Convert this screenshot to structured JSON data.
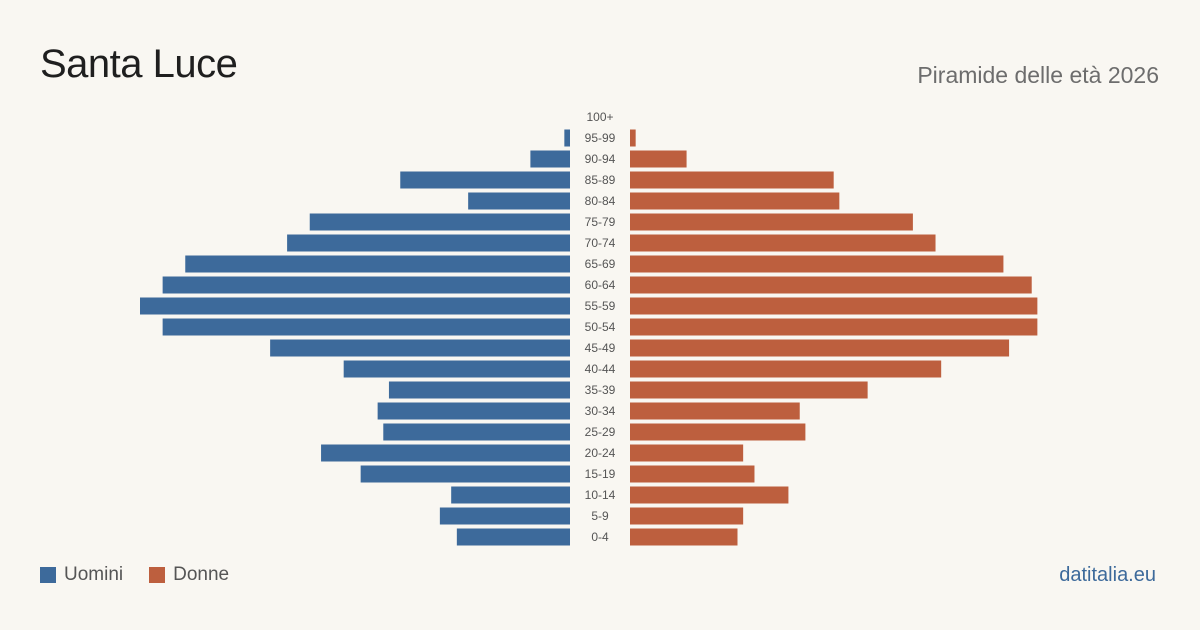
{
  "header": {
    "title": "Santa Luce",
    "subtitle": "Piramide delle età 2026"
  },
  "legend": {
    "men_label": "Uomini",
    "women_label": "Donne"
  },
  "source": "datitalia.eu",
  "colors": {
    "men": "#3d6a9b",
    "women": "#bd5f3e",
    "background": "#f9f7f2",
    "age_label": "#555555"
  },
  "chart_data": {
    "type": "bar",
    "orientation": "horizontal-pyramid",
    "categories": [
      "100+",
      "95-99",
      "90-94",
      "85-89",
      "80-84",
      "75-79",
      "70-74",
      "65-69",
      "60-64",
      "55-59",
      "50-54",
      "45-49",
      "40-44",
      "35-39",
      "30-34",
      "25-29",
      "20-24",
      "15-19",
      "10-14",
      "5-9",
      "0-4"
    ],
    "series": [
      {
        "name": "Uomini",
        "values": [
          0,
          1,
          7,
          30,
          18,
          46,
          50,
          68,
          72,
          76,
          72,
          53,
          40,
          32,
          34,
          33,
          44,
          37,
          21,
          23,
          20
        ]
      },
      {
        "name": "Donne",
        "values": [
          0,
          1,
          10,
          36,
          37,
          50,
          54,
          66,
          71,
          72,
          72,
          67,
          55,
          42,
          30,
          31,
          20,
          22,
          28,
          20,
          19
        ]
      }
    ],
    "xlim": [
      0,
      76
    ],
    "grid": false,
    "legend_position": "bottom-left"
  }
}
